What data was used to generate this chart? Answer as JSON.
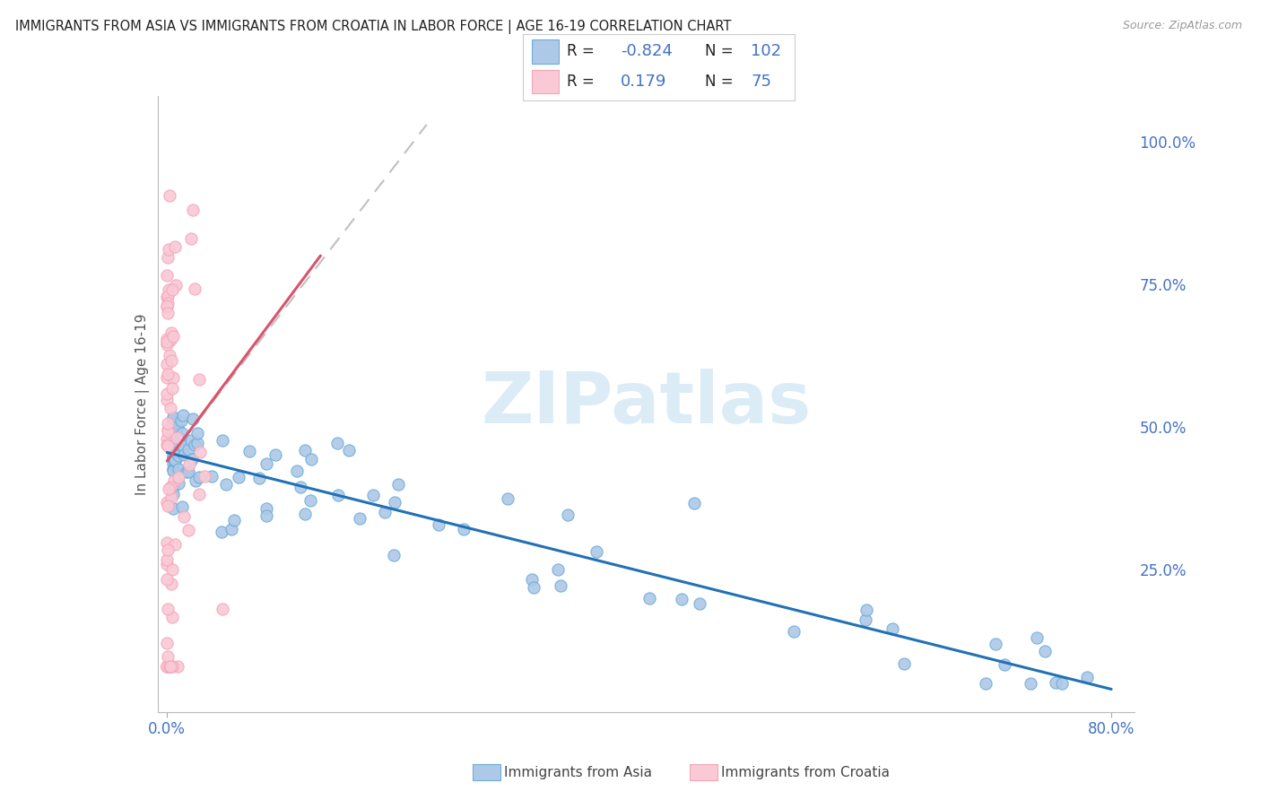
{
  "title": "IMMIGRANTS FROM ASIA VS IMMIGRANTS FROM CROATIA IN LABOR FORCE | AGE 16-19 CORRELATION CHART",
  "source": "Source: ZipAtlas.com",
  "ylabel": "In Labor Force | Age 16-19",
  "xlim": [
    0.0,
    0.8
  ],
  "ylim": [
    0.0,
    1.05
  ],
  "legend_blue_R": "-0.824",
  "legend_blue_N": "102",
  "legend_pink_R": "0.179",
  "legend_pink_N": "75",
  "blue_edge_color": "#6baed6",
  "pink_edge_color": "#f4a6ba",
  "blue_line_color": "#2171b5",
  "pink_line_color": "#d9536c",
  "blue_dot_fill": "#aec8e8",
  "pink_dot_fill": "#f9c9d5",
  "watermark_color": "#cce5f5",
  "background_color": "#ffffff",
  "grid_color": "#cccccc",
  "right_axis_color": "#4472c4"
}
